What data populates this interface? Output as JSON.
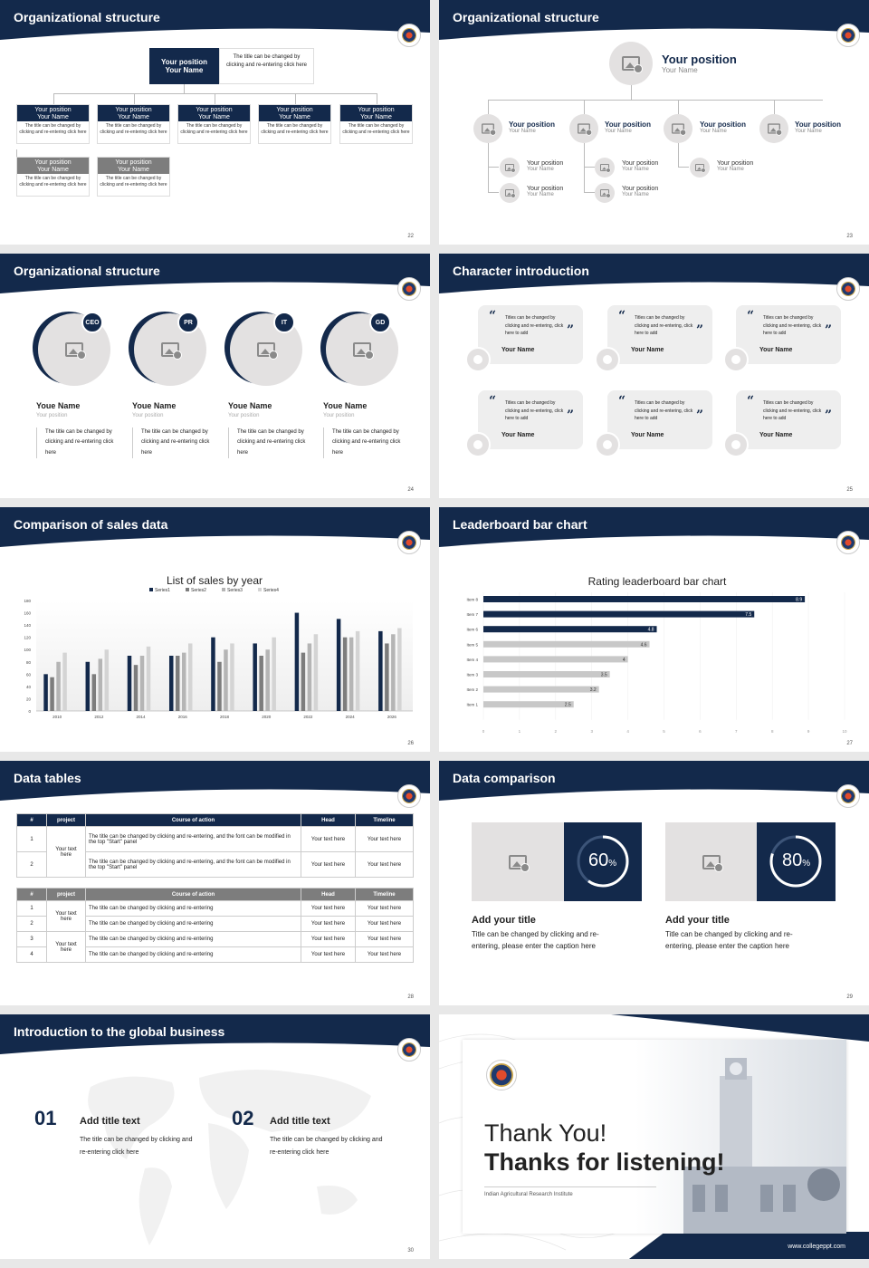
{
  "colors": {
    "navy": "#13294b",
    "gray": "#7d7d7d",
    "bar_light": "#c8c8c8",
    "placeholder": "#e3e1e1"
  },
  "slides": [
    {
      "title": "Organizational structure",
      "page": "22",
      "top": {
        "pos": "Your position",
        "name": "Your Name",
        "desc": "The title can be changed by clicking and re-entering click here"
      },
      "boxes": [
        {
          "pos": "Your position",
          "name": "Your Name",
          "desc": "The title can be changed by clicking and re-entering click here"
        },
        {
          "pos": "Your position",
          "name": "Your Name",
          "desc": "The title can be changed by clicking and re-entering click here"
        },
        {
          "pos": "Your position",
          "name": "Your Name",
          "desc": "The title can be changed by clicking and re-entering click here"
        },
        {
          "pos": "Your position",
          "name": "Your Name",
          "desc": "The title can be changed by clicking and re-entering click here"
        },
        {
          "pos": "Your position",
          "name": "Your Name",
          "desc": "The title can be changed by clicking and re-entering click here"
        },
        {
          "pos": "Your position",
          "name": "Your Name",
          "desc": "The title can be changed by clicking and re-entering click here"
        },
        {
          "pos": "Your position",
          "name": "Your Name",
          "desc": "The title can be changed by clicking and re-entering click here"
        }
      ]
    },
    {
      "title": "Organizational structure",
      "page": "23",
      "top": {
        "pos": "Your position",
        "name": "Your Name"
      },
      "items": [
        {
          "pos": "Your position",
          "name": "Your Name"
        },
        {
          "pos": "Your position",
          "name": "Your Name"
        },
        {
          "pos": "Your position",
          "name": "Your Name"
        },
        {
          "pos": "Your position",
          "name": "Your Name"
        },
        {
          "pos": "Your position",
          "name": "Your Name"
        },
        {
          "pos": "Your position",
          "name": "Your Name"
        },
        {
          "pos": "Your position",
          "name": "Your Name"
        },
        {
          "pos": "Your position",
          "name": "Your Name"
        },
        {
          "pos": "Your position",
          "name": "Your Name"
        }
      ]
    },
    {
      "title": "Organizational structure",
      "page": "24",
      "people": [
        {
          "badge": "CEO",
          "name": "Youe Name",
          "pos": "Your position",
          "desc": "The title can be changed by clicking and re-entering click here"
        },
        {
          "badge": "PR",
          "name": "Youe Name",
          "pos": "Your position",
          "desc": "The title can be changed by clicking and re-entering click here"
        },
        {
          "badge": "IT",
          "name": "Youe Name",
          "pos": "Your position",
          "desc": "The title can be changed by clicking and re-entering click here"
        },
        {
          "badge": "GD",
          "name": "Youe Name",
          "pos": "Your position",
          "desc": "The title can be changed by clicking and re-entering click here"
        }
      ]
    },
    {
      "title": "Character introduction",
      "page": "25",
      "quote_open": "“",
      "quote_close": "”",
      "cards": [
        {
          "text": "Titles can be changed by clicking and re-entering, click here to add",
          "name": "Your Name"
        },
        {
          "text": "Titles can be changed by clicking and re-entering, click here to add",
          "name": "Your Name"
        },
        {
          "text": "Titles can be changed by clicking and re-entering, click here to add",
          "name": "Your Name"
        },
        {
          "text": "Titles can be changed by clicking and re-entering, click here to add",
          "name": "Your Name"
        },
        {
          "text": "Titles can be changed by clicking and re-entering, click here to add",
          "name": "Your Name"
        },
        {
          "text": "Titles can be changed by clicking and re-entering, click here to add",
          "name": "Your Name"
        }
      ]
    },
    {
      "title": "Comparison of sales data",
      "page": "26"
    },
    {
      "title": "Leaderboard bar chart",
      "page": "27"
    },
    {
      "title": "Data tables",
      "page": "28",
      "t1_headers": [
        "#",
        "project",
        "Course of action",
        "Head",
        "Timeline"
      ],
      "t1_project": "Your text here",
      "t1_rows": [
        {
          "n": "1",
          "action": "The title can be changed by clicking and re-entering, and the font can be modified in the top \"Start\" panel",
          "head": "Your text here",
          "time": "Your text here"
        },
        {
          "n": "2",
          "action": "The title can be changed by clicking and re-entering, and the font can be modified in the top \"Start\" panel",
          "head": "Your text here",
          "time": "Your text here"
        }
      ],
      "t2_headers": [
        "#",
        "project",
        "Course of action",
        "Head",
        "Timeline"
      ],
      "t2_project_a": "Your text here",
      "t2_project_b": "Your text here",
      "t2_rows": [
        {
          "n": "1",
          "action": "The title can be changed by clicking and re-entering",
          "head": "Your text here",
          "time": "Your text here"
        },
        {
          "n": "2",
          "action": "The title can be changed by clicking and re-entering",
          "head": "Your text here",
          "time": "Your text here"
        },
        {
          "n": "3",
          "action": "The title can be changed by clicking and re-entering",
          "head": "Your text here",
          "time": "Your text here"
        },
        {
          "n": "4",
          "action": "The title can be changed by clicking and re-entering",
          "head": "Your text here",
          "time": "Your text here"
        }
      ]
    },
    {
      "title": "Data comparison",
      "page": "29",
      "items": [
        {
          "pct": "60",
          "unit": "%",
          "value": 0.6,
          "heading": "Add your title",
          "desc": "Title can be changed by clicking and re-entering, please enter the caption here"
        },
        {
          "pct": "80",
          "unit": "%",
          "value": 0.8,
          "heading": "Add your title",
          "desc": "Title can be changed by clicking and re-entering, please enter the caption here"
        }
      ]
    },
    {
      "title": "Introduction to the global business",
      "page": "30",
      "items": [
        {
          "num": "01",
          "heading": "Add title text",
          "desc": "The title can be changed by clicking and re-entering click here"
        },
        {
          "num": "02",
          "heading": "Add title text",
          "desc": "The title can be changed by clicking and re-entering click here"
        }
      ]
    },
    {
      "line1": "Thank You!",
      "line2": "Thanks for listening!",
      "sub": "Indian Agricultural Research Institute",
      "url": "www.collegeppt.com"
    }
  ],
  "chart_data": [
    {
      "type": "bar",
      "title": "List of sales by year",
      "categories": [
        "2010",
        "2012",
        "2014",
        "2016",
        "2018",
        "2020",
        "2022",
        "2024",
        "2026"
      ],
      "series": [
        {
          "name": "Series1",
          "values": [
            60,
            80,
            90,
            90,
            120,
            110,
            160,
            150,
            130
          ]
        },
        {
          "name": "Series2",
          "values": [
            55,
            60,
            75,
            90,
            80,
            90,
            95,
            120,
            110
          ]
        },
        {
          "name": "Series3",
          "values": [
            80,
            85,
            90,
            95,
            100,
            100,
            110,
            120,
            125
          ]
        },
        {
          "name": "Series4",
          "values": [
            95,
            100,
            105,
            110,
            110,
            120,
            125,
            130,
            135
          ]
        }
      ],
      "ylim": [
        0,
        180
      ],
      "yticks": [
        "0",
        "20",
        "40",
        "60",
        "80",
        "100",
        "120",
        "140",
        "160",
        "180"
      ],
      "legend": "top"
    },
    {
      "type": "bar",
      "orientation": "horizontal",
      "title": "Rating leaderboard bar chart",
      "categories": [
        "Item 8",
        "Item 7",
        "Item 6",
        "Item 5",
        "Item 4",
        "Item 3",
        "Item 2",
        "Item 1"
      ],
      "values": [
        8.9,
        7.5,
        4.8,
        4.6,
        4,
        3.5,
        3.2,
        2.5
      ],
      "labels": [
        "8.9",
        "7.5",
        "4.8",
        "4.6",
        "4",
        "3.5",
        "3.2",
        "2.5"
      ],
      "xlim": [
        0,
        10
      ],
      "xticks": [
        "0",
        "1",
        "2",
        "3",
        "4",
        "5",
        "6",
        "7",
        "8",
        "9",
        "10"
      ]
    }
  ]
}
